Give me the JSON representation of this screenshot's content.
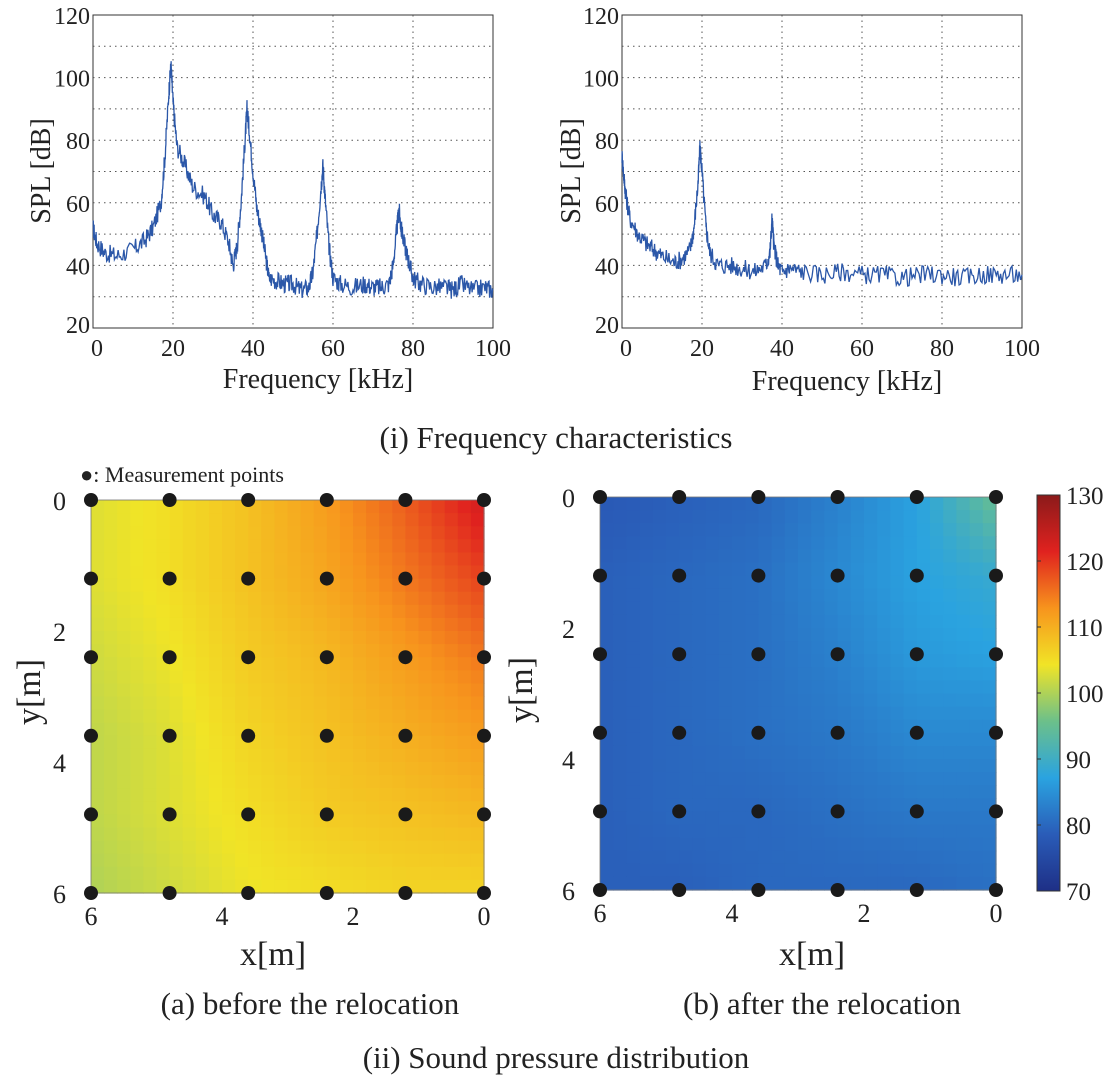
{
  "captions": {
    "section_i": "(i) Frequency characteristics",
    "section_ii": "(ii) Sound pressure distribution",
    "panel_a": "(a) before the relocation",
    "panel_b": "(b) after the relocation",
    "legend_note": "●: Measurement points"
  },
  "chart_data": [
    {
      "type": "line",
      "xlabel": "Frequency [kHz]",
      "ylabel": "SPL [dB]",
      "xlim": [
        0,
        100
      ],
      "ylim": [
        20,
        120
      ],
      "xticks": [
        "0",
        "20",
        "40",
        "60",
        "80",
        "100"
      ],
      "yticks": [
        "20",
        "40",
        "60",
        "80",
        "100",
        "120"
      ],
      "grid": true,
      "line_color": "#2b57a8",
      "series": [
        {
          "x": [
            0,
            1,
            3,
            6,
            10,
            13,
            15,
            17,
            18,
            19,
            19.5,
            20,
            21,
            23,
            25,
            28,
            30,
            32,
            34,
            35,
            36,
            37,
            38,
            38.5,
            39,
            40,
            41,
            42,
            43,
            44,
            46,
            48,
            50,
            52,
            54,
            55,
            56,
            57,
            57.5,
            58,
            59,
            60,
            62,
            65,
            68,
            70,
            72,
            74,
            75,
            76,
            76.5,
            77,
            78,
            79,
            80,
            82,
            85,
            88,
            90,
            92,
            95,
            98,
            100
          ],
          "values": [
            52,
            47,
            44,
            43,
            45,
            48,
            52,
            60,
            75,
            96,
            104,
            92,
            78,
            72,
            65,
            62,
            56,
            54,
            47,
            40,
            46,
            60,
            80,
            90,
            84,
            70,
            58,
            52,
            44,
            36,
            35,
            34,
            34,
            32,
            33,
            38,
            50,
            65,
            72,
            62,
            46,
            36,
            34,
            33,
            34,
            33,
            33,
            34,
            40,
            52,
            58,
            52,
            46,
            41,
            36,
            34,
            33,
            33,
            32,
            34,
            32,
            33,
            32
          ]
        }
      ]
    },
    {
      "type": "line",
      "xlabel": "Frequency [kHz]",
      "ylabel": "SPL [dB]",
      "xlim": [
        0,
        100
      ],
      "ylim": [
        20,
        120
      ],
      "xticks": [
        "0",
        "20",
        "40",
        "60",
        "80",
        "100"
      ],
      "yticks": [
        "20",
        "40",
        "60",
        "80",
        "100",
        "120"
      ],
      "grid": true,
      "line_color": "#2b57a8",
      "series": [
        {
          "x": [
            0,
            0.5,
            1,
            2,
            4,
            6,
            8,
            10,
            13,
            15,
            17,
            18,
            19,
            19.5,
            20,
            21,
            22,
            24,
            27,
            30,
            33,
            36,
            37,
            37.5,
            38,
            39,
            40,
            42,
            45,
            50,
            55,
            60,
            65,
            70,
            75,
            80,
            85,
            90,
            95,
            100
          ],
          "values": [
            75,
            68,
            62,
            55,
            50,
            47,
            45,
            43,
            41,
            42,
            45,
            52,
            66,
            78,
            70,
            52,
            44,
            40,
            40,
            39,
            38,
            40,
            44,
            55,
            46,
            40,
            38,
            39,
            38,
            37,
            38,
            37,
            37,
            36,
            37,
            37,
            36,
            37,
            37,
            37
          ]
        }
      ]
    },
    {
      "type": "heatmap",
      "xlabel": "x[m]",
      "ylabel": "y[m]",
      "xlim": [
        6,
        0
      ],
      "ylim": [
        0,
        6
      ],
      "xticks": [
        "6",
        "4",
        "2",
        "0"
      ],
      "yticks": [
        "0",
        "2",
        "4",
        "6"
      ],
      "grid_x": [
        6,
        4.8,
        3.6,
        2.4,
        1.2,
        0
      ],
      "grid_y": [
        0,
        1.2,
        2.4,
        3.6,
        4.8,
        6
      ],
      "values": [
        [
          103,
          105,
          108,
          112,
          117,
          123
        ],
        [
          103,
          105,
          108,
          111,
          115,
          119
        ],
        [
          102,
          104,
          107,
          109,
          112,
          115
        ],
        [
          101,
          103,
          106,
          108,
          110,
          112
        ],
        [
          101,
          103,
          105,
          107,
          108,
          109
        ],
        [
          100,
          102,
          104,
          105,
          106,
          106
        ]
      ]
    },
    {
      "type": "heatmap",
      "xlabel": "x[m]",
      "ylabel": "y[m]",
      "xlim": [
        6,
        0
      ],
      "ylim": [
        0,
        6
      ],
      "xticks": [
        "6",
        "4",
        "2",
        "0"
      ],
      "yticks": [
        "0",
        "2",
        "4",
        "6"
      ],
      "grid_x": [
        6,
        4.8,
        3.6,
        2.4,
        1.2,
        0
      ],
      "grid_y": [
        0,
        1.2,
        2.4,
        3.6,
        4.8,
        6
      ],
      "values": [
        [
          78,
          79,
          80,
          83,
          87,
          95
        ],
        [
          79,
          80,
          81,
          84,
          87,
          89
        ],
        [
          79,
          80,
          81,
          83,
          86,
          87
        ],
        [
          79,
          80,
          81,
          82,
          84,
          84
        ],
        [
          79,
          80,
          80,
          81,
          82,
          82
        ],
        [
          79,
          79,
          80,
          80,
          80,
          81
        ]
      ]
    },
    {
      "type": "heatmap",
      "colorbar": {
        "vmin": 70,
        "vmax": 130,
        "ticks": [
          "130",
          "120",
          "110",
          "100",
          "90",
          "80",
          "70"
        ],
        "stops": [
          "#1e2f86",
          "#2a5cb8",
          "#2aa3e0",
          "#6cc08a",
          "#f1e426",
          "#f7941d",
          "#e0221f",
          "#8b1a1a"
        ]
      }
    }
  ]
}
